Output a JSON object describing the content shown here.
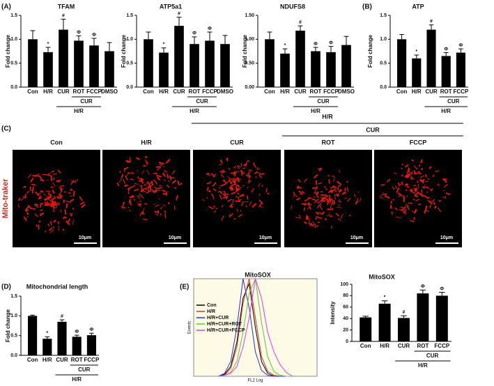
{
  "panels": {
    "a": "(A)",
    "b": "(B)",
    "c": "(C)",
    "d": "(D)",
    "e": "(E)"
  },
  "images": {
    "group_outer": "H/R",
    "group_inner": "CUR",
    "labels": [
      "Con",
      "H/R",
      "CUR",
      "ROT",
      "FCCP"
    ],
    "stain": "Mito-traker",
    "scale_bar": "10μm"
  },
  "chart_data": [
    {
      "type": "bar",
      "title": "TFAM",
      "y_label": "Fold change",
      "categories": [
        "Con",
        "H/R",
        "CUR",
        "ROT",
        "FCCP",
        "DMSO"
      ],
      "values": [
        1.0,
        0.73,
        1.2,
        0.97,
        0.87,
        0.75
      ],
      "errors": [
        0.18,
        0.1,
        0.22,
        0.1,
        0.15,
        0.18
      ],
      "bar_labels": [
        null,
        "*",
        "#",
        "Φ",
        "Φ",
        null
      ],
      "groups": [
        {
          "label": "CUR",
          "span": [
            3,
            4
          ]
        },
        {
          "label": "H/R",
          "span": [
            2,
            4
          ]
        }
      ],
      "color": "#000000",
      "ylim": [
        0,
        1.5
      ],
      "yticks": [
        {
          "value": 0,
          "label": "0.0"
        },
        0.5,
        {
          "value": 1,
          "label": "1.0"
        },
        1.5
      ]
    },
    {
      "type": "bar",
      "title": "ATP5a1",
      "y_label": "Fold change",
      "categories": [
        "Con",
        "H/R",
        "CUR",
        "ROT",
        "FCCP",
        "DMSO"
      ],
      "values": [
        1.0,
        0.72,
        1.28,
        0.9,
        0.97,
        0.9
      ],
      "errors": [
        0.15,
        0.1,
        0.18,
        0.15,
        0.18,
        0.18
      ],
      "bar_labels": [
        null,
        "*",
        "#",
        "Φ",
        "Φ",
        null
      ],
      "groups": [
        {
          "label": "CUR",
          "span": [
            3,
            4
          ]
        },
        {
          "label": "H/R",
          "span": [
            2,
            4
          ]
        }
      ],
      "color": "#000000",
      "ylim": [
        0,
        1.5
      ],
      "yticks": [
        {
          "value": 0,
          "label": "0.0"
        },
        0.5,
        {
          "value": 1,
          "label": "1.0"
        },
        1.5
      ]
    },
    {
      "type": "bar",
      "title": "NDUFS8",
      "y_label": "Fold change",
      "categories": [
        "Con",
        "H/R",
        "CUR",
        "ROT",
        "FCCP",
        "DMSO"
      ],
      "values": [
        1.0,
        0.7,
        1.18,
        0.75,
        0.73,
        0.88
      ],
      "errors": [
        0.15,
        0.1,
        0.1,
        0.08,
        0.12,
        0.18
      ],
      "bar_labels": [
        null,
        "*",
        "#",
        "Φ",
        "Φ",
        null
      ],
      "groups": [
        {
          "label": "CUR",
          "span": [
            3,
            4
          ]
        },
        {
          "label": "H/R",
          "span": [
            2,
            4
          ]
        }
      ],
      "color": "#000000",
      "ylim": [
        0,
        1.5
      ],
      "yticks": [
        {
          "value": 0,
          "label": "0.00"
        },
        {
          "value": 0.5,
          "label": "0.50"
        },
        {
          "value": 1,
          "label": "1.00"
        },
        {
          "value": 1.5,
          "label": "1.50"
        }
      ]
    },
    {
      "type": "bar",
      "title": "ATP",
      "y_label": "Fold change",
      "categories": [
        "Con",
        "H/R",
        "CUR",
        "ROT",
        "FCCP"
      ],
      "values": [
        1.0,
        0.6,
        1.2,
        0.65,
        0.72
      ],
      "errors": [
        0.1,
        0.07,
        0.1,
        0.07,
        0.08
      ],
      "bar_labels": [
        null,
        "*",
        "#",
        "Φ",
        "Φ"
      ],
      "groups": [
        {
          "label": "CUR",
          "span": [
            3,
            4
          ]
        },
        {
          "label": "H/R",
          "span": [
            2,
            4
          ]
        }
      ],
      "color": "#000000",
      "ylim": [
        0,
        1.5
      ],
      "yticks": [
        {
          "value": 0,
          "label": "0.0"
        },
        0.5,
        {
          "value": 1,
          "label": "1.0"
        },
        1.5
      ]
    },
    {
      "type": "bar",
      "title": "Mitochondrial length",
      "y_label": "Fold change",
      "categories": [
        "Con",
        "H/R",
        "CUR",
        "ROT",
        "FCCP"
      ],
      "values": [
        1.0,
        0.42,
        0.85,
        0.47,
        0.51
      ],
      "errors": [
        0.02,
        0.05,
        0.05,
        0.04,
        0.05
      ],
      "bar_labels": [
        null,
        "*",
        "#",
        "Φ",
        "Φ"
      ],
      "groups": [
        {
          "label": "CUR",
          "span": [
            3,
            4
          ]
        },
        {
          "label": "H/R",
          "span": [
            2,
            4
          ]
        }
      ],
      "color": "#000000",
      "ylim": [
        0,
        1.5
      ],
      "yticks": [
        {
          "value": 0,
          "label": "0.0"
        },
        0.5,
        {
          "value": 1,
          "label": "1.0"
        },
        1.5
      ]
    },
    {
      "type": "line",
      "title": "MitoSOX",
      "x_label": "FL2 Log",
      "y_label": "Events",
      "x": [
        20,
        25,
        30,
        35,
        40,
        45,
        50,
        55,
        60,
        65,
        70,
        75,
        80
      ],
      "xlim": [
        0,
        100
      ],
      "ylim": [
        0,
        100
      ],
      "series": [
        {
          "name": "Con",
          "color": "#000000",
          "values": [
            0,
            2,
            10,
            35,
            80,
            95,
            50,
            15,
            3,
            0,
            0,
            0,
            0
          ]
        },
        {
          "name": "H/R",
          "color": "#e0301e",
          "values": [
            0,
            1,
            8,
            30,
            75,
            100,
            60,
            20,
            5,
            1,
            0,
            0,
            0
          ]
        },
        {
          "name": "H/R+CUR",
          "color": "#2233cc",
          "values": [
            0,
            3,
            15,
            50,
            100,
            70,
            25,
            6,
            1,
            0,
            0,
            0,
            0
          ]
        },
        {
          "name": "H/R+CUR+ROT",
          "color": "#55cc33",
          "values": [
            0,
            1,
            4,
            15,
            45,
            85,
            100,
            55,
            20,
            5,
            1,
            0,
            0
          ]
        },
        {
          "name": "H/R+CUR+FCCP",
          "color": "#ee33ee",
          "values": [
            0,
            1,
            3,
            10,
            30,
            60,
            100,
            80,
            45,
            25,
            12,
            4,
            0
          ]
        }
      ]
    },
    {
      "type": "bar",
      "title": "MitoSOX",
      "y_label": "Intensity",
      "categories": [
        "Con",
        "H/R",
        "CUR",
        "ROT",
        "FCCP"
      ],
      "values": [
        42,
        66,
        41,
        84,
        80
      ],
      "errors": [
        2,
        5,
        4,
        6,
        6
      ],
      "bar_labels": [
        null,
        "*",
        "#",
        "Φ",
        "Φ"
      ],
      "groups": [
        {
          "label": "CUR",
          "span": [
            3,
            4
          ]
        },
        {
          "label": "H/R",
          "span": [
            2,
            4
          ]
        }
      ],
      "color": "#000000",
      "ylim": [
        0,
        100
      ],
      "yticks": [
        0,
        20,
        40,
        60,
        80,
        100
      ]
    }
  ]
}
